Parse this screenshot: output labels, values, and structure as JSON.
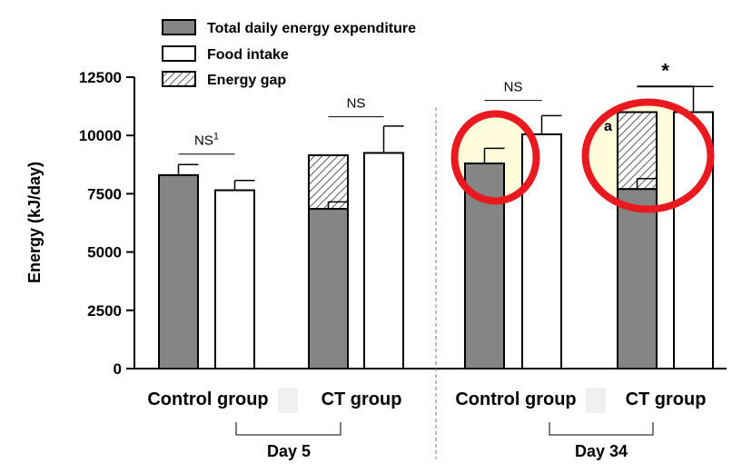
{
  "chart_data": {
    "type": "bar",
    "ylabel": "Energy (kJ/day)",
    "ylim": [
      0,
      12500
    ],
    "yticks": [
      0,
      2500,
      5000,
      7500,
      10000,
      12500
    ],
    "grid": false,
    "legend": [
      {
        "label": "Total daily energy expenditure",
        "style": "gray"
      },
      {
        "label": "Food intake",
        "style": "white"
      },
      {
        "label": "Energy gap",
        "style": "hatch"
      }
    ],
    "legend_position": "top-left",
    "bars": [
      {
        "group": "Control group",
        "day": "Day 5",
        "series": "Total daily energy expenditure",
        "value": 8300,
        "error": 450
      },
      {
        "group": "Control group",
        "day": "Day 5",
        "series": "Food intake",
        "value": 7650,
        "error": 420
      },
      {
        "group": "CT group",
        "day": "Day 5",
        "series": "Total daily energy expenditure",
        "value": 6850,
        "error": 300,
        "gap_top": 9150
      },
      {
        "group": "CT group",
        "day": "Day 5",
        "series": "Food intake",
        "value": 9250,
        "error": 1150
      },
      {
        "group": "Control group",
        "day": "Day 34",
        "series": "Total daily energy expenditure",
        "value": 8800,
        "error": 650
      },
      {
        "group": "Control group",
        "day": "Day 34",
        "series": "Food intake",
        "value": 10050,
        "error": 800
      },
      {
        "group": "CT group",
        "day": "Day 34",
        "series": "Total daily energy expenditure",
        "value": 7700,
        "error": 450,
        "gap_top": 11000
      },
      {
        "group": "CT group",
        "day": "Day 34",
        "series": "Food intake",
        "value": 11000,
        "error": 1100
      }
    ],
    "significance": [
      {
        "label": "NS",
        "superscript": "1",
        "pair": [
          0,
          1
        ],
        "level": 9200
      },
      {
        "label": "NS",
        "superscript": "",
        "pair": [
          2,
          3
        ],
        "level": 10800
      },
      {
        "label": "NS",
        "superscript": "",
        "pair": [
          4,
          5
        ],
        "level": 11500
      },
      {
        "label": "*",
        "superscript": "",
        "pair": [
          6,
          7
        ],
        "level": 12100
      }
    ],
    "categories": [
      "Control group",
      "CT group",
      "Control group",
      "CT group"
    ],
    "day_labels": [
      "Day 5",
      "Day 34"
    ],
    "annotation": "a",
    "highlight_circles": [
      {
        "bar": 4,
        "color": "#e8191f",
        "fill": "#fffbd6"
      },
      {
        "bar": 6,
        "color": "#e8191f",
        "fill": "#fffbd6"
      }
    ]
  }
}
